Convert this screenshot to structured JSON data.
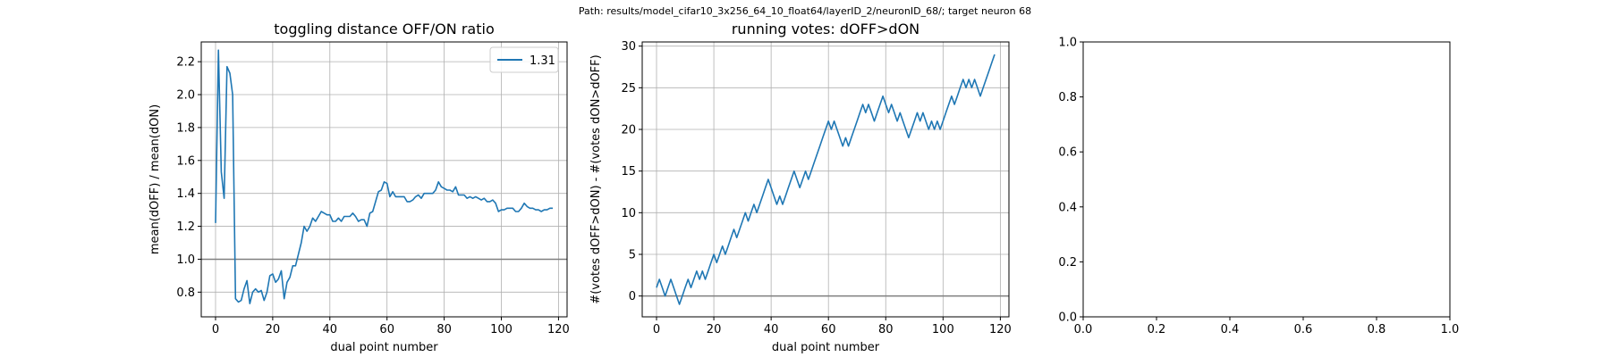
{
  "suptitle": "Path: results/model_cifar10_3x256_64_10_float64/layerID_2/neuronID_68/; target neuron 68",
  "chart_data": [
    {
      "type": "line",
      "title": "toggling distance OFF/ON ratio",
      "xlabel": "dual point number",
      "ylabel": "mean(dOFF) / mean(dON)",
      "xlim": [
        -5,
        123
      ],
      "ylim": [
        0.65,
        2.32
      ],
      "xticks": [
        0,
        20,
        40,
        60,
        80,
        100,
        120
      ],
      "yticks": [
        0.8,
        1.0,
        1.2,
        1.4,
        1.6,
        1.8,
        2.0,
        2.2
      ],
      "grid": true,
      "legend": {
        "position": "top-right",
        "entries": [
          "1.31"
        ]
      },
      "hline": 1.0,
      "colors": {
        "line": "#1f77b4",
        "hline": "#808080",
        "grid": "#b0b0b0"
      },
      "series": [
        {
          "name": "1.31",
          "x": [
            0,
            1,
            2,
            3,
            4,
            5,
            6,
            7,
            8,
            9,
            10,
            11,
            12,
            13,
            14,
            15,
            16,
            17,
            18,
            19,
            20,
            21,
            22,
            23,
            24,
            25,
            26,
            27,
            28,
            29,
            30,
            31,
            32,
            33,
            34,
            35,
            36,
            37,
            38,
            39,
            40,
            41,
            42,
            43,
            44,
            45,
            46,
            47,
            48,
            49,
            50,
            51,
            52,
            53,
            54,
            55,
            56,
            57,
            58,
            59,
            60,
            61,
            62,
            63,
            64,
            65,
            66,
            67,
            68,
            69,
            70,
            71,
            72,
            73,
            74,
            75,
            76,
            77,
            78,
            79,
            80,
            81,
            82,
            83,
            84,
            85,
            86,
            87,
            88,
            89,
            90,
            91,
            92,
            93,
            94,
            95,
            96,
            97,
            98,
            99,
            100,
            101,
            102,
            103,
            104,
            105,
            106,
            107,
            108,
            109,
            110,
            111,
            112,
            113,
            114,
            115,
            116,
            117,
            118
          ],
          "values": [
            1.22,
            2.27,
            1.53,
            1.37,
            2.17,
            2.13,
            2.0,
            0.76,
            0.74,
            0.75,
            0.82,
            0.87,
            0.73,
            0.8,
            0.82,
            0.8,
            0.81,
            0.75,
            0.8,
            0.9,
            0.91,
            0.86,
            0.88,
            0.93,
            0.76,
            0.86,
            0.89,
            0.96,
            0.96,
            1.03,
            1.1,
            1.2,
            1.17,
            1.2,
            1.25,
            1.23,
            1.26,
            1.29,
            1.28,
            1.27,
            1.27,
            1.23,
            1.23,
            1.25,
            1.23,
            1.26,
            1.26,
            1.26,
            1.28,
            1.26,
            1.23,
            1.24,
            1.24,
            1.2,
            1.28,
            1.29,
            1.35,
            1.41,
            1.42,
            1.47,
            1.46,
            1.38,
            1.41,
            1.38,
            1.38,
            1.38,
            1.38,
            1.35,
            1.35,
            1.36,
            1.38,
            1.39,
            1.37,
            1.4,
            1.4,
            1.4,
            1.4,
            1.42,
            1.47,
            1.44,
            1.43,
            1.42,
            1.42,
            1.41,
            1.44,
            1.39,
            1.39,
            1.39,
            1.37,
            1.38,
            1.37,
            1.38,
            1.37,
            1.36,
            1.37,
            1.35,
            1.35,
            1.36,
            1.34,
            1.29,
            1.3,
            1.3,
            1.31,
            1.31,
            1.31,
            1.29,
            1.29,
            1.31,
            1.34,
            1.32,
            1.31,
            1.31,
            1.3,
            1.3,
            1.29,
            1.3,
            1.3,
            1.31,
            1.31
          ]
        }
      ]
    },
    {
      "type": "line",
      "title": "running votes: dOFF>dON",
      "xlabel": "dual point number",
      "ylabel": "#(votes dOFF>dON) - #(votes dON>dOFF)",
      "xlim": [
        -5,
        123
      ],
      "ylim": [
        -2.5,
        30.5
      ],
      "xticks": [
        0,
        20,
        40,
        60,
        80,
        100,
        120
      ],
      "yticks": [
        0,
        5,
        10,
        15,
        20,
        25,
        30
      ],
      "grid": true,
      "hline": 0,
      "colors": {
        "line": "#1f77b4",
        "hline": "#808080",
        "grid": "#b0b0b0"
      },
      "series": [
        {
          "x": [
            0,
            1,
            2,
            3,
            4,
            5,
            6,
            7,
            8,
            9,
            10,
            11,
            12,
            13,
            14,
            15,
            16,
            17,
            18,
            19,
            20,
            21,
            22,
            23,
            24,
            25,
            26,
            27,
            28,
            29,
            30,
            31,
            32,
            33,
            34,
            35,
            36,
            37,
            38,
            39,
            40,
            41,
            42,
            43,
            44,
            45,
            46,
            47,
            48,
            49,
            50,
            51,
            52,
            53,
            54,
            55,
            56,
            57,
            58,
            59,
            60,
            61,
            62,
            63,
            64,
            65,
            66,
            67,
            68,
            69,
            70,
            71,
            72,
            73,
            74,
            75,
            76,
            77,
            78,
            79,
            80,
            81,
            82,
            83,
            84,
            85,
            86,
            87,
            88,
            89,
            90,
            91,
            92,
            93,
            94,
            95,
            96,
            97,
            98,
            99,
            100,
            101,
            102,
            103,
            104,
            105,
            106,
            107,
            108,
            109,
            110,
            111,
            112,
            113,
            114,
            115,
            116,
            117,
            118
          ],
          "values": [
            1,
            2,
            1,
            0,
            1,
            2,
            1,
            0,
            -1,
            0,
            1,
            2,
            1,
            2,
            3,
            2,
            3,
            2,
            3,
            4,
            5,
            4,
            5,
            6,
            5,
            6,
            7,
            8,
            7,
            8,
            9,
            10,
            9,
            10,
            11,
            10,
            11,
            12,
            13,
            14,
            13,
            12,
            11,
            12,
            11,
            12,
            13,
            14,
            15,
            14,
            13,
            14,
            15,
            14,
            15,
            16,
            17,
            18,
            19,
            20,
            21,
            20,
            21,
            20,
            19,
            18,
            19,
            18,
            19,
            20,
            21,
            22,
            23,
            22,
            23,
            22,
            21,
            22,
            23,
            24,
            23,
            22,
            23,
            22,
            21,
            22,
            21,
            20,
            19,
            20,
            21,
            22,
            21,
            22,
            21,
            20,
            21,
            20,
            21,
            20,
            21,
            22,
            23,
            24,
            23,
            24,
            25,
            26,
            25,
            26,
            25,
            26,
            25,
            24,
            25,
            26,
            27,
            28,
            29
          ]
        }
      ]
    },
    {
      "type": "line",
      "title": "",
      "xlim": [
        0,
        1
      ],
      "ylim": [
        0,
        1
      ],
      "xticks": [
        0.0,
        0.2,
        0.4,
        0.6,
        0.8,
        1.0
      ],
      "yticks": [
        0.0,
        0.2,
        0.4,
        0.6,
        0.8,
        1.0
      ],
      "grid": false,
      "series": []
    }
  ]
}
